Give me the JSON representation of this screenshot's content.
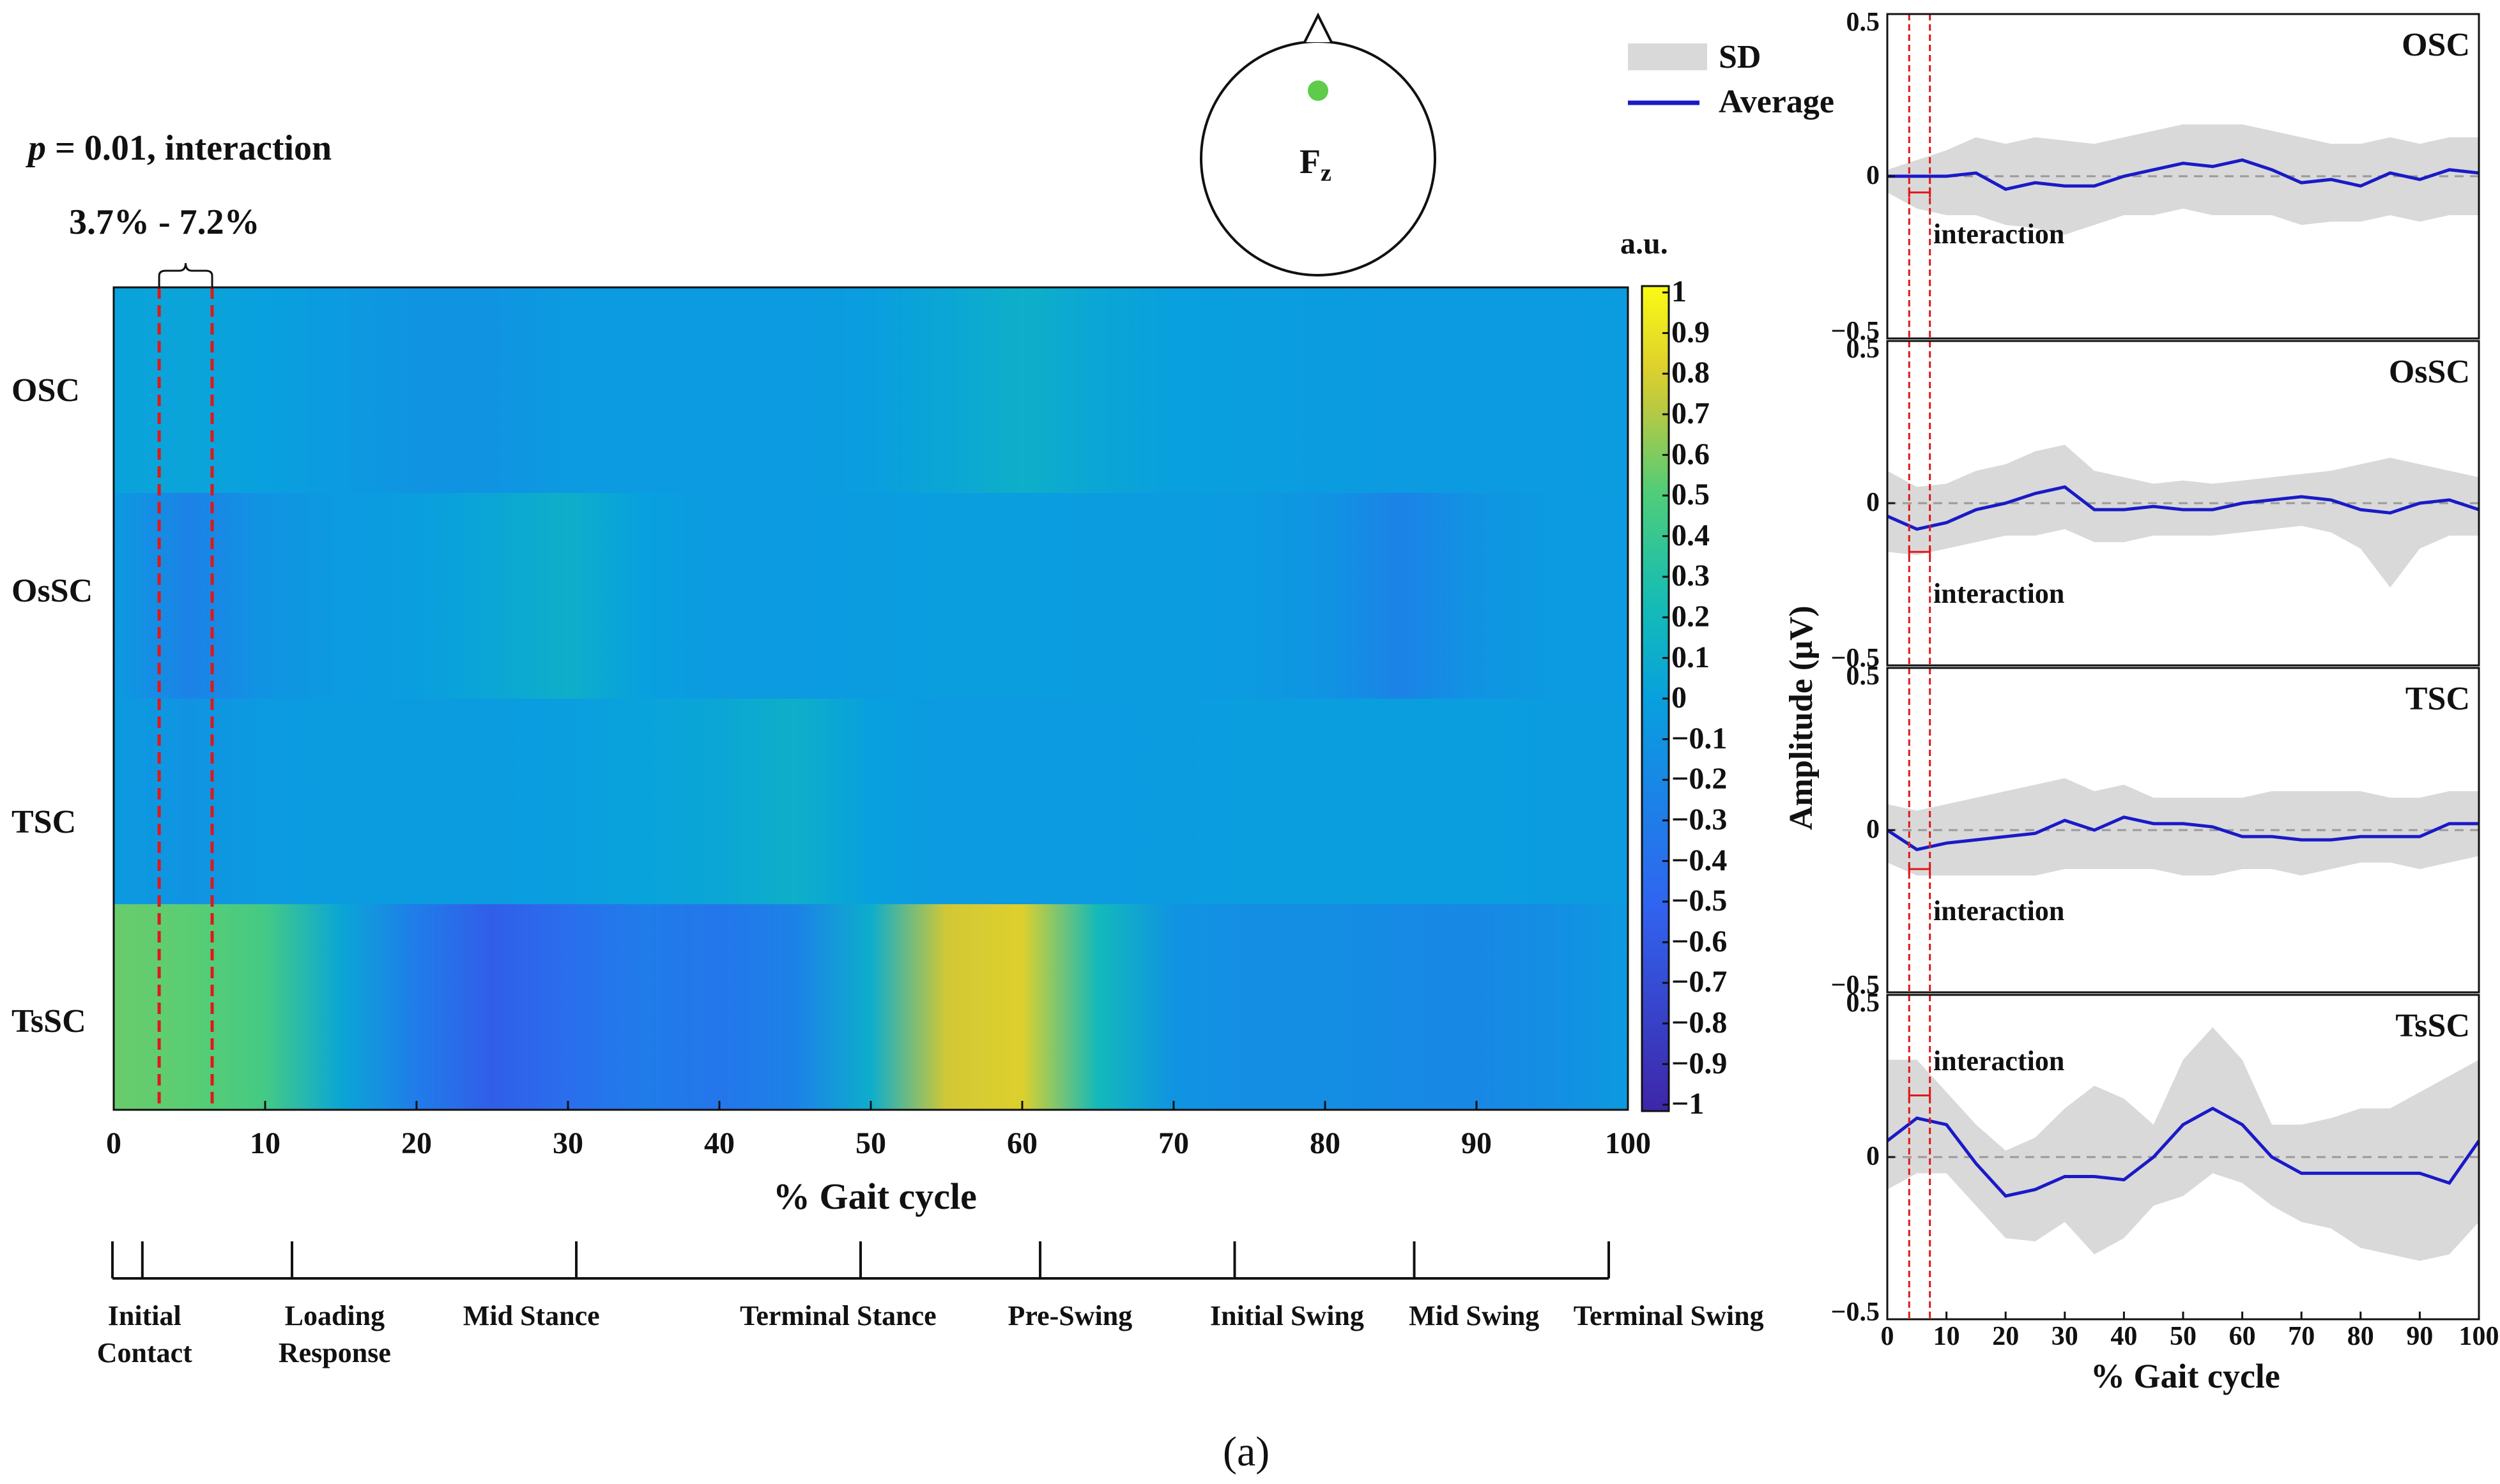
{
  "annotation": {
    "p_label": "p",
    "p_value_text": "= 0.01, interaction",
    "range_text": "3.7% - 7.2%",
    "range_start": 3.7,
    "range_end": 7.2
  },
  "electrode": {
    "label": "F",
    "subscript": "z",
    "dot_color": "#5ecb4a"
  },
  "legend": {
    "sd_label": "SD",
    "avg_label": "Average",
    "sd_color": "#d9d9d9",
    "avg_color": "#1a1ac8"
  },
  "caption": "(a)",
  "chart_data": [
    {
      "type": "heatmap",
      "xlabel": "% Gait cycle",
      "xlim": [
        0,
        100
      ],
      "xticks": [
        0,
        10,
        20,
        30,
        40,
        50,
        60,
        70,
        80,
        90,
        100
      ],
      "rows": [
        "OSC",
        "OsSC",
        "TSC",
        "TsSC"
      ],
      "colorbar": {
        "label": "a.u.",
        "range": [
          -1,
          1
        ],
        "ticks": [
          "1",
          "0.9",
          "0.8",
          "0.7",
          "0.6",
          "0.5",
          "0.4",
          "0.3",
          "0.2",
          "0.1",
          "0",
          "−0.1",
          "−0.2",
          "−0.3",
          "−0.4",
          "−0.5",
          "−0.6",
          "−0.7",
          "−0.8",
          "−0.9",
          "−1"
        ]
      },
      "x": [
        0,
        5,
        10,
        15,
        20,
        25,
        30,
        35,
        40,
        45,
        50,
        55,
        60,
        65,
        70,
        75,
        80,
        85,
        90,
        95,
        100
      ],
      "values": [
        [
          0.02,
          0.03,
          0.0,
          -0.05,
          -0.1,
          -0.1,
          -0.05,
          -0.05,
          -0.05,
          -0.05,
          -0.02,
          0.05,
          0.12,
          0.05,
          0.0,
          -0.02,
          -0.03,
          -0.05,
          -0.05,
          -0.05,
          -0.03
        ],
        [
          -0.05,
          -0.25,
          -0.1,
          -0.05,
          -0.02,
          0.05,
          0.12,
          0.0,
          -0.05,
          -0.05,
          -0.03,
          -0.02,
          -0.02,
          -0.03,
          -0.03,
          -0.05,
          -0.1,
          -0.25,
          -0.1,
          -0.05,
          -0.05
        ],
        [
          -0.05,
          -0.1,
          -0.05,
          -0.03,
          -0.03,
          -0.03,
          -0.02,
          0.02,
          0.05,
          0.12,
          0.0,
          -0.05,
          -0.05,
          -0.05,
          -0.03,
          -0.02,
          -0.02,
          -0.02,
          -0.02,
          -0.03,
          -0.03
        ],
        [
          0.55,
          0.52,
          0.45,
          0.05,
          -0.3,
          -0.55,
          -0.42,
          -0.3,
          -0.35,
          -0.25,
          0.1,
          0.75,
          0.8,
          0.2,
          -0.1,
          -0.15,
          -0.15,
          -0.18,
          -0.2,
          -0.15,
          -0.05
        ]
      ]
    },
    {
      "type": "area",
      "panels": [
        "OSC",
        "OsSC",
        "TSC",
        "TsSC"
      ],
      "xlabel": "% Gait cycle",
      "ylabel": "Amplitude (μV)",
      "xlim": [
        0,
        100
      ],
      "ylim": [
        -0.5,
        0.5
      ],
      "xticks": [
        0,
        10,
        20,
        30,
        40,
        50,
        60,
        70,
        80,
        90,
        100
      ],
      "yticks": [
        "0.5",
        "0",
        "−0.5"
      ],
      "annotation": "interaction",
      "x": [
        0,
        5,
        10,
        15,
        20,
        25,
        30,
        35,
        40,
        45,
        50,
        55,
        60,
        65,
        70,
        75,
        80,
        85,
        90,
        95,
        100
      ],
      "series": [
        {
          "mean": [
            0.0,
            0.0,
            0.0,
            0.01,
            -0.04,
            -0.02,
            -0.03,
            -0.03,
            0.0,
            0.02,
            0.04,
            0.03,
            0.05,
            0.02,
            -0.02,
            -0.01,
            -0.03,
            0.01,
            -0.01,
            0.02,
            0.01
          ],
          "sd_upper": [
            0.02,
            0.05,
            0.08,
            0.12,
            0.1,
            0.12,
            0.11,
            0.1,
            0.12,
            0.14,
            0.16,
            0.16,
            0.16,
            0.14,
            0.12,
            0.1,
            0.1,
            0.12,
            0.1,
            0.12,
            0.12
          ],
          "sd_lower": [
            -0.05,
            -0.1,
            -0.12,
            -0.12,
            -0.15,
            -0.16,
            -0.18,
            -0.15,
            -0.12,
            -0.12,
            -0.1,
            -0.12,
            -0.12,
            -0.12,
            -0.15,
            -0.14,
            -0.14,
            -0.12,
            -0.14,
            -0.12,
            -0.12
          ]
        },
        {
          "mean": [
            -0.04,
            -0.08,
            -0.06,
            -0.02,
            0.0,
            0.03,
            0.05,
            -0.02,
            -0.02,
            -0.01,
            -0.02,
            -0.02,
            0.0,
            0.01,
            0.02,
            0.01,
            -0.02,
            -0.03,
            0.0,
            0.01,
            -0.02
          ],
          "sd_upper": [
            0.1,
            0.05,
            0.06,
            0.1,
            0.12,
            0.16,
            0.18,
            0.1,
            0.08,
            0.06,
            0.07,
            0.06,
            0.07,
            0.08,
            0.09,
            0.1,
            0.12,
            0.14,
            0.12,
            0.1,
            0.08
          ],
          "sd_lower": [
            -0.15,
            -0.16,
            -0.14,
            -0.12,
            -0.1,
            -0.1,
            -0.08,
            -0.12,
            -0.12,
            -0.1,
            -0.1,
            -0.1,
            -0.09,
            -0.08,
            -0.07,
            -0.09,
            -0.14,
            -0.26,
            -0.14,
            -0.1,
            -0.1
          ]
        },
        {
          "mean": [
            0.0,
            -0.06,
            -0.04,
            -0.03,
            -0.02,
            -0.01,
            0.03,
            0.0,
            0.04,
            0.02,
            0.02,
            0.01,
            -0.02,
            -0.02,
            -0.03,
            -0.03,
            -0.02,
            -0.02,
            -0.02,
            0.02,
            0.02
          ],
          "sd_upper": [
            0.08,
            0.06,
            0.08,
            0.1,
            0.12,
            0.14,
            0.16,
            0.12,
            0.14,
            0.1,
            0.1,
            0.1,
            0.1,
            0.12,
            0.12,
            0.12,
            0.12,
            0.1,
            0.1,
            0.12,
            0.12
          ],
          "sd_lower": [
            -0.1,
            -0.14,
            -0.14,
            -0.14,
            -0.14,
            -0.14,
            -0.12,
            -0.12,
            -0.12,
            -0.12,
            -0.14,
            -0.14,
            -0.12,
            -0.12,
            -0.14,
            -0.12,
            -0.1,
            -0.1,
            -0.12,
            -0.1,
            -0.08
          ]
        },
        {
          "mean": [
            0.05,
            0.12,
            0.1,
            -0.02,
            -0.12,
            -0.1,
            -0.06,
            -0.06,
            -0.07,
            0.0,
            0.1,
            0.15,
            0.1,
            0.0,
            -0.05,
            -0.05,
            -0.05,
            -0.05,
            -0.05,
            -0.08,
            0.05
          ],
          "sd_upper": [
            0.3,
            0.3,
            0.2,
            0.1,
            0.02,
            0.06,
            0.15,
            0.22,
            0.18,
            0.1,
            0.3,
            0.4,
            0.3,
            0.1,
            0.1,
            0.12,
            0.15,
            0.15,
            0.2,
            0.25,
            0.3
          ],
          "sd_lower": [
            -0.1,
            -0.05,
            -0.05,
            -0.15,
            -0.25,
            -0.26,
            -0.2,
            -0.3,
            -0.25,
            -0.15,
            -0.12,
            -0.05,
            -0.08,
            -0.15,
            -0.2,
            -0.22,
            -0.28,
            -0.3,
            -0.32,
            -0.3,
            -0.2
          ]
        }
      ]
    }
  ],
  "phases": [
    {
      "lines": [
        "Initial",
        "Contact"
      ],
      "start": 0,
      "end": 2
    },
    {
      "lines": [
        "Loading",
        "Response"
      ],
      "start": 2,
      "end": 12
    },
    {
      "lines": [
        "Mid Stance"
      ],
      "start": 12,
      "end": 31
    },
    {
      "lines": [
        "Terminal Stance"
      ],
      "start": 31,
      "end": 50
    },
    {
      "lines": [
        "Pre-Swing"
      ],
      "start": 50,
      "end": 62
    },
    {
      "lines": [
        "Initial Swing"
      ],
      "start": 62,
      "end": 75
    },
    {
      "lines": [
        "Mid Swing"
      ],
      "start": 75,
      "end": 87
    },
    {
      "lines": [
        "Terminal Swing"
      ],
      "start": 87,
      "end": 100
    }
  ]
}
